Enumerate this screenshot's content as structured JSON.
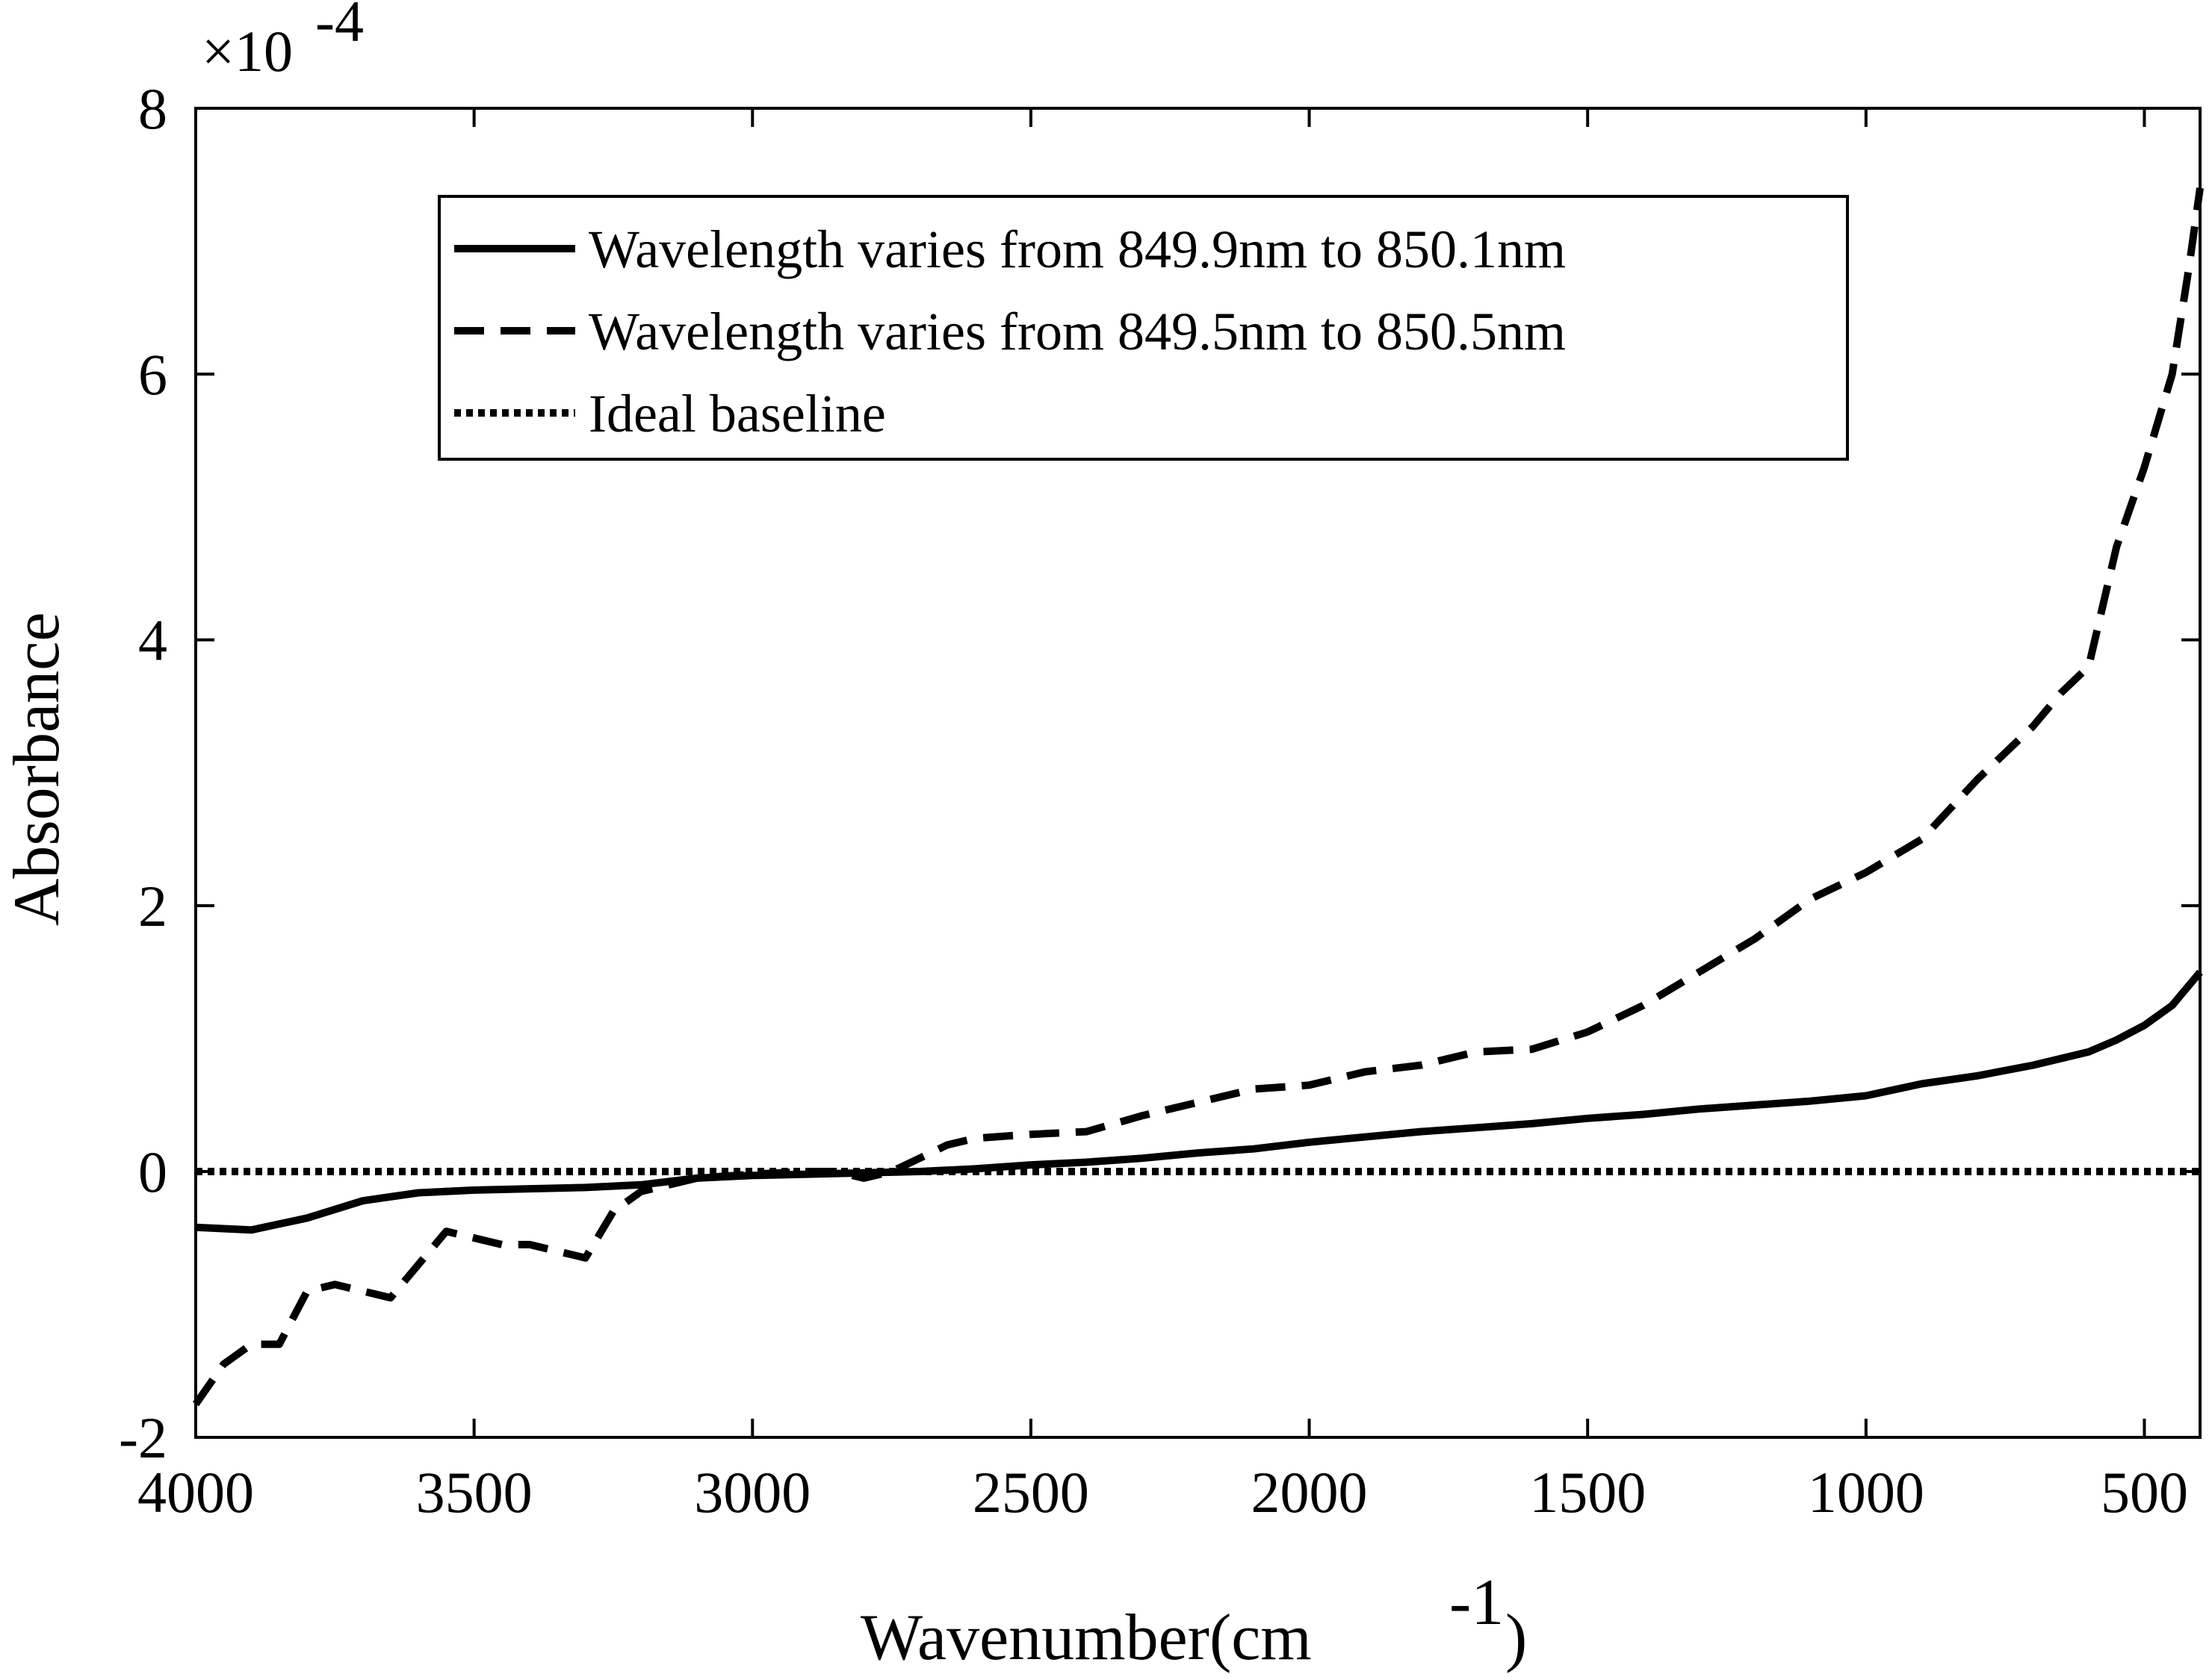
{
  "chart_data": {
    "type": "line",
    "title": "",
    "xlabel_main": "Wavenumber(cm",
    "xlabel_sup": "-1",
    "xlabel_close": ")",
    "ylabel": "Absorbance",
    "y_multiplier_prefix": "×10",
    "y_multiplier_exp": "-4",
    "xlim": [
      4000,
      400
    ],
    "x_reversed": true,
    "ylim": [
      -2,
      8
    ],
    "xticks": [
      4000,
      3500,
      3000,
      2500,
      2000,
      1500,
      1000,
      500
    ],
    "xtick_labels": [
      "4000",
      "3500",
      "3000",
      "2500",
      "2000",
      "1500",
      "1000",
      "500"
    ],
    "yticks": [
      -2,
      0,
      2,
      4,
      6,
      8
    ],
    "ytick_labels": [
      "-2",
      "0",
      "2",
      "4",
      "6",
      "8"
    ],
    "grid": false,
    "legend_position": "top-center",
    "series": [
      {
        "name": "Wavelength varies from 849.9nm to 850.1nm",
        "style": "solid",
        "x": [
          4000,
          3900,
          3800,
          3700,
          3600,
          3500,
          3400,
          3300,
          3200,
          3100,
          3000,
          2900,
          2800,
          2700,
          2600,
          2500,
          2400,
          2300,
          2200,
          2100,
          2000,
          1900,
          1800,
          1700,
          1600,
          1500,
          1400,
          1300,
          1200,
          1100,
          1000,
          900,
          800,
          700,
          600,
          550,
          500,
          450,
          400
        ],
        "values": [
          -0.42,
          -0.44,
          -0.35,
          -0.22,
          -0.16,
          -0.14,
          -0.13,
          -0.12,
          -0.1,
          -0.05,
          -0.03,
          -0.02,
          -0.01,
          0.0,
          0.02,
          0.05,
          0.07,
          0.1,
          0.14,
          0.17,
          0.22,
          0.26,
          0.3,
          0.33,
          0.36,
          0.4,
          0.43,
          0.47,
          0.5,
          0.53,
          0.57,
          0.66,
          0.72,
          0.8,
          0.9,
          0.99,
          1.1,
          1.25,
          1.5
        ]
      },
      {
        "name": "Wavelength varies from 849.5nm to 850.5nm",
        "style": "dashed",
        "x": [
          4000,
          3950,
          3900,
          3850,
          3800,
          3750,
          3700,
          3650,
          3600,
          3550,
          3500,
          3450,
          3400,
          3350,
          3300,
          3250,
          3200,
          3100,
          3000,
          2900,
          2850,
          2800,
          2750,
          2700,
          2650,
          2600,
          2500,
          2400,
          2300,
          2200,
          2100,
          2000,
          1900,
          1800,
          1700,
          1600,
          1500,
          1400,
          1300,
          1200,
          1100,
          1000,
          900,
          800,
          700,
          650,
          600,
          550,
          500,
          450,
          420,
          400
        ],
        "values": [
          -1.75,
          -1.45,
          -1.3,
          -1.3,
          -0.9,
          -0.85,
          -0.9,
          -0.95,
          -0.7,
          -0.45,
          -0.5,
          -0.55,
          -0.55,
          -0.6,
          -0.65,
          -0.3,
          -0.15,
          -0.05,
          -0.02,
          0.0,
          0.0,
          -0.05,
          0.0,
          0.1,
          0.2,
          0.25,
          0.28,
          0.3,
          0.42,
          0.52,
          0.62,
          0.65,
          0.75,
          0.8,
          0.9,
          0.92,
          1.05,
          1.25,
          1.5,
          1.75,
          2.05,
          2.25,
          2.5,
          2.95,
          3.35,
          3.6,
          3.8,
          4.7,
          5.3,
          6.0,
          6.8,
          7.4
        ]
      },
      {
        "name": "Ideal baseline",
        "style": "dotted",
        "x": [
          4000,
          400
        ],
        "values": [
          0,
          0
        ]
      }
    ]
  }
}
